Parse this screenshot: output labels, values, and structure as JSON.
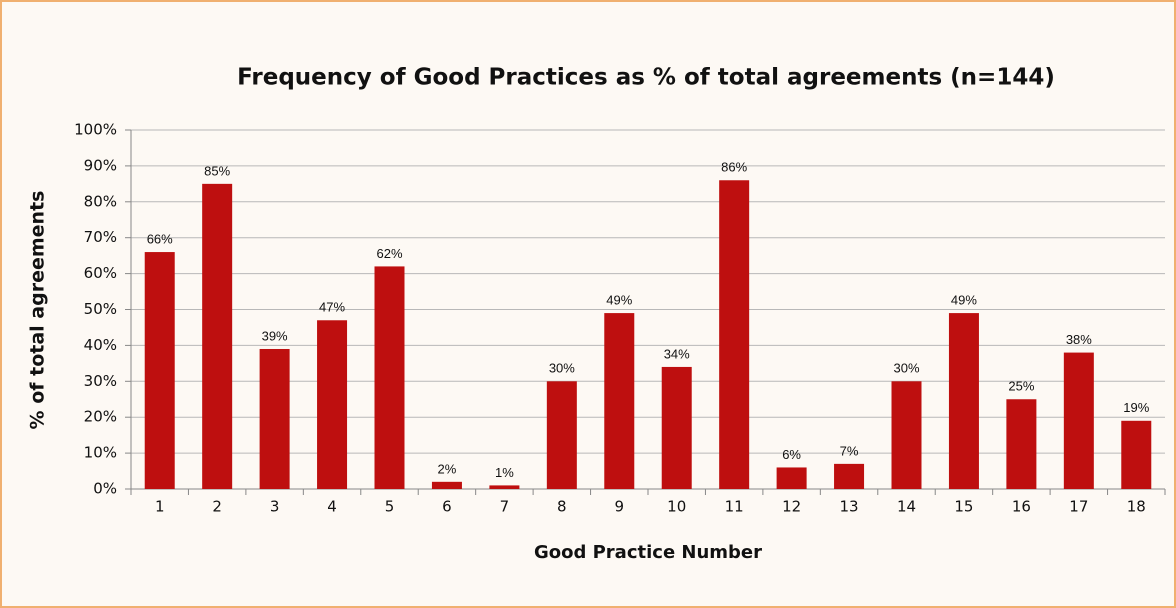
{
  "chart_data": {
    "type": "bar",
    "title": "Frequency of Good Practices as % of total agreements (n=144)",
    "x_label": "Good Practice Number",
    "y_label": "% of total agreements",
    "categories": [
      "1",
      "2",
      "3",
      "4",
      "5",
      "6",
      "7",
      "8",
      "9",
      "10",
      "11",
      "12",
      "13",
      "14",
      "15",
      "16",
      "17",
      "18"
    ],
    "values": [
      66,
      85,
      39,
      47,
      62,
      2,
      1,
      30,
      49,
      34,
      86,
      6,
      7,
      30,
      49,
      25,
      38,
      19
    ],
    "value_labels": [
      "66%",
      "85%",
      "39%",
      "47%",
      "62%",
      "2%",
      "1%",
      "30%",
      "49%",
      "34%",
      "86%",
      "6%",
      "7%",
      "30%",
      "49%",
      "25%",
      "38%",
      "19%"
    ],
    "color": "#be0f0f",
    "ylim": [
      0,
      100
    ],
    "yticks": [
      {
        "value": 0,
        "label": "0%"
      },
      {
        "value": 10,
        "label": "10%"
      },
      {
        "value": 20,
        "label": "20%"
      },
      {
        "value": 30,
        "label": "30%"
      },
      {
        "value": 40,
        "label": "40%"
      },
      {
        "value": 50,
        "label": "50%"
      },
      {
        "value": 60,
        "label": "60%"
      },
      {
        "value": 70,
        "label": "70%"
      },
      {
        "value": 80,
        "label": "80%"
      },
      {
        "value": 90,
        "label": "90%"
      },
      {
        "value": 100,
        "label": "100%"
      }
    ],
    "grid": true
  }
}
